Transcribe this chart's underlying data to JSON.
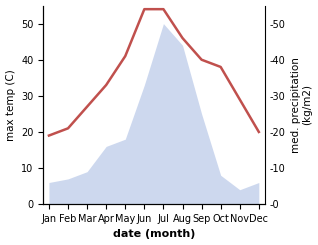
{
  "months": [
    "Jan",
    "Feb",
    "Mar",
    "Apr",
    "May",
    "Jun",
    "Jul",
    "Aug",
    "Sep",
    "Oct",
    "Nov",
    "Dec"
  ],
  "temperature": [
    19,
    21,
    27,
    33,
    41,
    54,
    54,
    46,
    40,
    38,
    29,
    20
  ],
  "precipitation": [
    6,
    7,
    9,
    16,
    18,
    33,
    50,
    44,
    25,
    8,
    4,
    6
  ],
  "temp_color": "#c0504d",
  "precip_fill_color": "#b8c8e8",
  "xlabel": "date (month)",
  "ylabel_left": "max temp (C)",
  "ylabel_right": "med. precipitation\n(kg/m2)",
  "ylim_left": [
    0,
    55
  ],
  "ylim_right": [
    0,
    55
  ],
  "yticks_left": [
    0,
    10,
    20,
    30,
    40,
    50
  ],
  "yticks_right": [
    0,
    10,
    20,
    30,
    40,
    50
  ],
  "background_color": "#ffffff",
  "temp_linewidth": 1.8,
  "xlabel_fontsize": 8,
  "ylabel_fontsize": 7.5,
  "tick_fontsize": 7
}
